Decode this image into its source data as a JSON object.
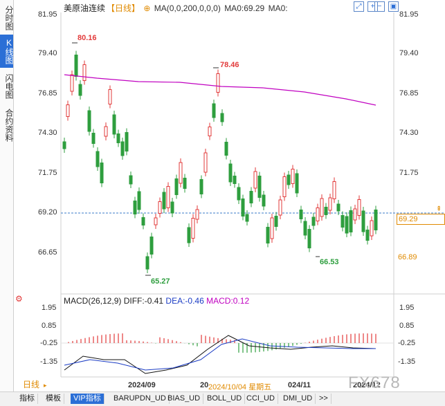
{
  "left_tabs": [
    {
      "label": "分时图",
      "active": false
    },
    {
      "label": "K线图",
      "active": true
    },
    {
      "label": "闪电图",
      "active": false
    },
    {
      "label": "合约资料",
      "active": false
    }
  ],
  "header": {
    "symbol": "美原油连续",
    "period": "【日线】",
    "ma_label": "MA(0,0,200,0,0,0)",
    "ma0_label": "MA0:69.29",
    "ma0_b": "MA0:"
  },
  "y_axis": {
    "ticks": [
      "81.95",
      "79.40",
      "76.85",
      "74.30",
      "71.75",
      "69.20",
      "66.65"
    ]
  },
  "price": {
    "current": "69.29",
    "low_marker": "66.89",
    "high_label": "80.16",
    "high2_label": "78.46",
    "low_label": "65.27",
    "low2_label": "66.53"
  },
  "macd": {
    "label": "MACD(26,12,9)",
    "diff": "DIFF:-0.41",
    "dea": "DEA:-0.46",
    "macd": "MACD:0.12",
    "ticks": [
      "1.95",
      "0.85",
      "-0.25",
      "-1.35"
    ]
  },
  "x_axis": {
    "labels": [
      "2024/09",
      "20",
      "024/11",
      "2024/12"
    ],
    "cross_date": "2024/10/04 星期五"
  },
  "period_button": "日线",
  "bottom_tabs": [
    {
      "label": "指标",
      "active": false
    },
    {
      "label": "模板",
      "active": false
    },
    {
      "label": "VIP指标",
      "active": true
    },
    {
      "label": "BARUPDN_UD",
      "active": false
    },
    {
      "label": "BIAS_UD",
      "active": false
    },
    {
      "label": "BOLL_UD",
      "active": false
    },
    {
      "label": "CCI_UD",
      "active": false
    },
    {
      "label": "DMI_UD",
      "active": false
    },
    {
      "label": ">>",
      "active": false
    }
  ],
  "watermark": "FX678",
  "colors": {
    "up": "#e23a3a",
    "down": "#2e9e3e",
    "ma": "#c000c0",
    "accent": "#e08a00",
    "blue": "#2b6fd6"
  }
}
